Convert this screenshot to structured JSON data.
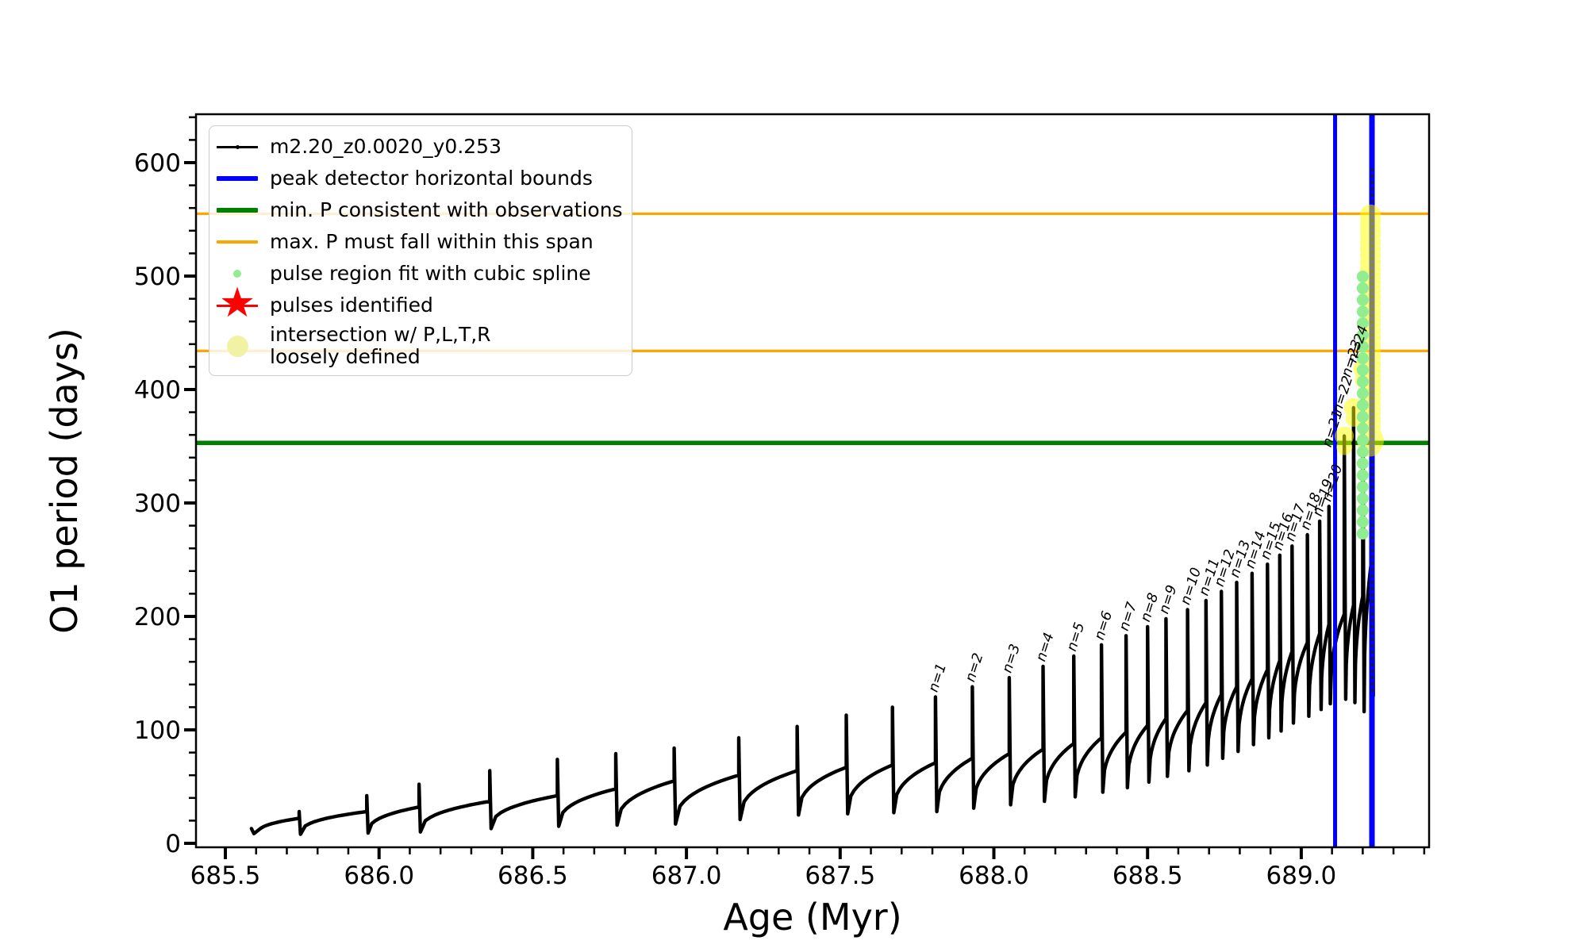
{
  "axes": {
    "xlabel": "Age (Myr)",
    "ylabel": "O1 period (days)",
    "x_ticks": [
      {
        "v": 685.5,
        "label": "685.5"
      },
      {
        "v": 686.0,
        "label": "686.0"
      },
      {
        "v": 686.5,
        "label": "686.5"
      },
      {
        "v": 687.0,
        "label": "687.0"
      },
      {
        "v": 687.5,
        "label": "687.5"
      },
      {
        "v": 688.0,
        "label": "688.0"
      },
      {
        "v": 688.5,
        "label": "688.5"
      },
      {
        "v": 689.0,
        "label": "689.0"
      }
    ],
    "y_ticks": [
      {
        "v": 0,
        "label": "0"
      },
      {
        "v": 100,
        "label": "100"
      },
      {
        "v": 200,
        "label": "200"
      },
      {
        "v": 300,
        "label": "300"
      },
      {
        "v": 400,
        "label": "400"
      },
      {
        "v": 500,
        "label": "500"
      },
      {
        "v": 600,
        "label": "600"
      }
    ],
    "x_minor_step": 0.1,
    "y_minor_step": 20,
    "x_range": [
      685.4,
      689.42
    ],
    "y_range": [
      -3.5,
      643
    ]
  },
  "colors": {
    "track": "#000000",
    "peak_bounds": "#0000ff",
    "min_p": "#008000",
    "max_p_span": "#ffa500",
    "spline_dots": "#90ee90",
    "pulses_identified": "#ff0000",
    "intersection": "#ffff00",
    "legend_border": "#cccccc"
  },
  "legend": {
    "entries": [
      {
        "name": "track",
        "marker": "line-dot",
        "color": "#000000",
        "label": "m2.20_z0.0020_y0.253"
      },
      {
        "name": "peak-bounds",
        "marker": "line-thick",
        "color": "#0000ff",
        "label": "peak detector horizontal bounds"
      },
      {
        "name": "min-p",
        "marker": "line-thick",
        "color": "#008000",
        "label": "min. P consistent with observations"
      },
      {
        "name": "max-p-span",
        "marker": "line-thin",
        "color": "#ffa500",
        "label": "max. P must fall within this span"
      },
      {
        "name": "spline-fit",
        "marker": "dot-small",
        "color": "#90ee90",
        "label": "pulse region fit with cubic spline"
      },
      {
        "name": "pulses",
        "marker": "star",
        "color": "#ff0000",
        "label": "pulses identified"
      },
      {
        "name": "intersection",
        "marker": "dot-large",
        "color": "#f2f2a5",
        "label": "intersection w/ P,L,T,R\nloosely defined"
      }
    ]
  },
  "chart_data": {
    "type": "line",
    "series_name": "m2.20_z0.0020_y0.253",
    "title": "",
    "xlabel": "Age (Myr)",
    "ylabel": "O1 period (days)",
    "x_range": [
      685.4,
      689.42
    ],
    "y_range": [
      -3.5,
      643
    ],
    "grid": false,
    "legend_position": "upper left",
    "track_start": {
      "age": 685.585,
      "period_days": 13
    },
    "track_end": {
      "age": 689.233,
      "period_days": 130
    },
    "min_p_line_days": 353,
    "max_p_span_days": [
      434,
      555
    ],
    "peak_detector_bounds_age": [
      689.11,
      689.23
    ],
    "spline_fit_column": {
      "age": 689.2,
      "period_from": 273,
      "period_to": 500,
      "spacing": 10.3
    },
    "intersection_column": {
      "age": 689.225,
      "period_from": 350,
      "period_to": 556
    },
    "intersection_peak_labels": [
      "n=21",
      "n=22",
      "n=23"
    ],
    "pulses": [
      {
        "age": 685.74,
        "peak": 28,
        "base": 22,
        "dip": 8
      },
      {
        "age": 685.96,
        "peak": 42,
        "base": 28,
        "dip": 9
      },
      {
        "age": 686.13,
        "peak": 52,
        "base": 32,
        "dip": 10
      },
      {
        "age": 686.36,
        "peak": 64,
        "base": 37,
        "dip": 13
      },
      {
        "age": 686.58,
        "peak": 74,
        "base": 42,
        "dip": 15
      },
      {
        "age": 686.77,
        "peak": 79,
        "base": 48,
        "dip": 16
      },
      {
        "age": 686.96,
        "peak": 84,
        "base": 55,
        "dip": 17
      },
      {
        "age": 687.17,
        "peak": 93,
        "base": 60,
        "dip": 21
      },
      {
        "age": 687.36,
        "peak": 103,
        "base": 64,
        "dip": 25
      },
      {
        "age": 687.52,
        "peak": 113,
        "base": 67,
        "dip": 26
      },
      {
        "age": 687.67,
        "peak": 120,
        "base": 69,
        "dip": 27
      },
      {
        "label": "n=1",
        "age": 687.81,
        "peak": 129,
        "base": 71,
        "dip": 28
      },
      {
        "label": "n=2",
        "age": 687.93,
        "peak": 138,
        "base": 75,
        "dip": 31
      },
      {
        "label": "n=3",
        "age": 688.05,
        "peak": 146,
        "base": 79,
        "dip": 34
      },
      {
        "label": "n=4",
        "age": 688.16,
        "peak": 156,
        "base": 83,
        "dip": 37
      },
      {
        "label": "n=5",
        "age": 688.26,
        "peak": 165,
        "base": 88,
        "dip": 41
      },
      {
        "label": "n=6",
        "age": 688.35,
        "peak": 175,
        "base": 93,
        "dip": 45
      },
      {
        "label": "n=7",
        "age": 688.43,
        "peak": 183,
        "base": 98,
        "dip": 49
      },
      {
        "label": "n=8",
        "age": 688.5,
        "peak": 191,
        "base": 104,
        "dip": 54
      },
      {
        "label": "n=9",
        "age": 688.56,
        "peak": 198,
        "base": 110,
        "dip": 59
      },
      {
        "label": "n=10",
        "age": 688.63,
        "peak": 206,
        "base": 117,
        "dip": 64
      },
      {
        "label": "n=11",
        "age": 688.69,
        "peak": 214,
        "base": 124,
        "dip": 69
      },
      {
        "label": "n=12",
        "age": 688.74,
        "peak": 222,
        "base": 131,
        "dip": 75
      },
      {
        "label": "n=13",
        "age": 688.79,
        "peak": 230,
        "base": 138,
        "dip": 81
      },
      {
        "label": "n=14",
        "age": 688.84,
        "peak": 238,
        "base": 145,
        "dip": 87
      },
      {
        "label": "n=15",
        "age": 688.89,
        "peak": 246,
        "base": 153,
        "dip": 93
      },
      {
        "label": "n=16",
        "age": 688.93,
        "peak": 254,
        "base": 161,
        "dip": 99
      },
      {
        "label": "n=17",
        "age": 688.97,
        "peak": 262,
        "base": 169,
        "dip": 106
      },
      {
        "label": "n=18",
        "age": 689.02,
        "peak": 272,
        "base": 177,
        "dip": 112
      },
      {
        "label": "n=19",
        "age": 689.06,
        "peak": 284,
        "base": 185,
        "dip": 118
      },
      {
        "label": "n=20",
        "age": 689.09,
        "peak": 297,
        "base": 193,
        "dip": 123
      },
      {
        "label": "n=21",
        "age": 689.14,
        "peak": 359,
        "base": 202,
        "dip": 127
      },
      {
        "label": "n=22",
        "age": 689.17,
        "peak": 384,
        "base": 210,
        "dip": 124
      },
      {
        "label": "n=23",
        "age": 689.2,
        "peak": 418,
        "base": 218,
        "dip": 116
      },
      {
        "label": "n=24",
        "age": 689.23,
        "peak": 595,
        "base": 252,
        "dip": 130
      }
    ]
  }
}
